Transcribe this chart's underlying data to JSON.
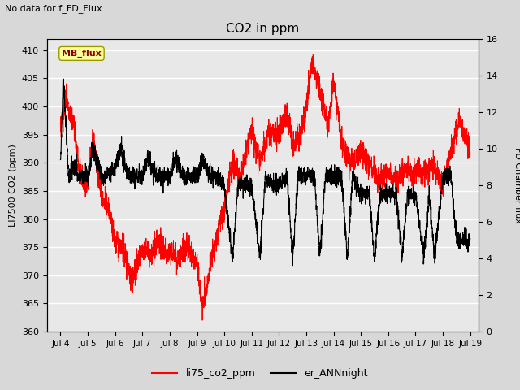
{
  "title": "CO2 in ppm",
  "top_left_text": "No data for f_FD_Flux",
  "ylabel_left": "LI7500 CO2 (ppm)",
  "ylabel_right": "FD Chamber flux",
  "xlim_days": [
    3.5,
    19.3
  ],
  "ylim_left": [
    360,
    412
  ],
  "ylim_right": [
    0,
    16
  ],
  "xtick_labels": [
    "Jul 4",
    "Jul 5",
    "Jul 6",
    "Jul 7",
    "Jul 8",
    "Jul 9",
    "Jul 10",
    "Jul 11",
    "Jul 12",
    "Jul 13",
    "Jul 14",
    "Jul 15",
    "Jul 16",
    "Jul 17",
    "Jul 18",
    "Jul 19"
  ],
  "xtick_positions": [
    4,
    5,
    6,
    7,
    8,
    9,
    10,
    11,
    12,
    13,
    14,
    15,
    16,
    17,
    18,
    19
  ],
  "yticks_left": [
    360,
    365,
    370,
    375,
    380,
    385,
    390,
    395,
    400,
    405,
    410
  ],
  "yticks_right": [
    0,
    2,
    4,
    6,
    8,
    10,
    12,
    14,
    16
  ],
  "legend_entries": [
    "li75_co2_ppm",
    "er_ANNnight"
  ],
  "line1_color": "red",
  "line2_color": "black",
  "bg_color": "#d8d8d8",
  "plot_bg": "#e8e8e8",
  "mb_flux_box_color": "#ffff99",
  "mb_flux_text": "MB_flux",
  "grid_color": "white"
}
